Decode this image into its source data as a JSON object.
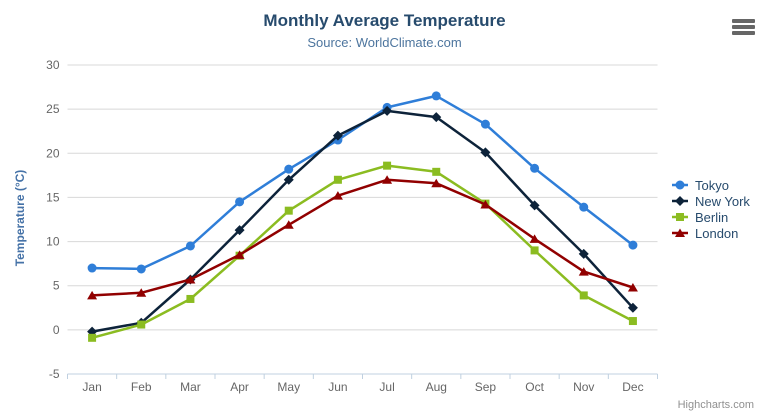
{
  "chart_data": {
    "type": "line",
    "title": "Monthly Average Temperature",
    "subtitle": "Source: WorldClimate.com",
    "categories": [
      "Jan",
      "Feb",
      "Mar",
      "Apr",
      "May",
      "Jun",
      "Jul",
      "Aug",
      "Sep",
      "Oct",
      "Nov",
      "Dec"
    ],
    "xlabel": "",
    "ylabel": "Temperature (°C)",
    "ylim": [
      -5,
      30
    ],
    "ytick_interval": 5,
    "grid": true,
    "legend_position": "right",
    "series": [
      {
        "name": "Tokyo",
        "color": "#2f7ed8",
        "marker": "circle",
        "values": [
          7.0,
          6.9,
          9.5,
          14.5,
          18.2,
          21.5,
          25.2,
          26.5,
          23.3,
          18.3,
          13.9,
          9.6
        ]
      },
      {
        "name": "New York",
        "color": "#0d233a",
        "marker": "diamond",
        "values": [
          -0.2,
          0.8,
          5.7,
          11.3,
          17.0,
          22.0,
          24.8,
          24.1,
          20.1,
          14.1,
          8.6,
          2.5
        ]
      },
      {
        "name": "Berlin",
        "color": "#8bbc21",
        "marker": "square",
        "values": [
          -0.9,
          0.6,
          3.5,
          8.4,
          13.5,
          17.0,
          18.6,
          17.9,
          14.3,
          9.0,
          3.9,
          1.0
        ]
      },
      {
        "name": "London",
        "color": "#910000",
        "marker": "triangle",
        "values": [
          3.9,
          4.2,
          5.7,
          8.5,
          11.9,
          15.2,
          17.0,
          16.6,
          14.2,
          10.3,
          6.6,
          4.8
        ]
      }
    ]
  },
  "credits": {
    "label": "Highcharts.com"
  },
  "icons": {
    "export_menu": "hamburger-icon"
  },
  "colors": {
    "title": "#274b6d",
    "subtitle": "#4d759e",
    "axis_labels": "#666666",
    "y_axis_title": "#4572a7",
    "gridline": "#d8d8d8",
    "axis_line": "#c0d0e0",
    "legend_text": "#274b6d",
    "credits_text": "#909090",
    "menu_icon": "#666666",
    "background": "#ffffff"
  }
}
